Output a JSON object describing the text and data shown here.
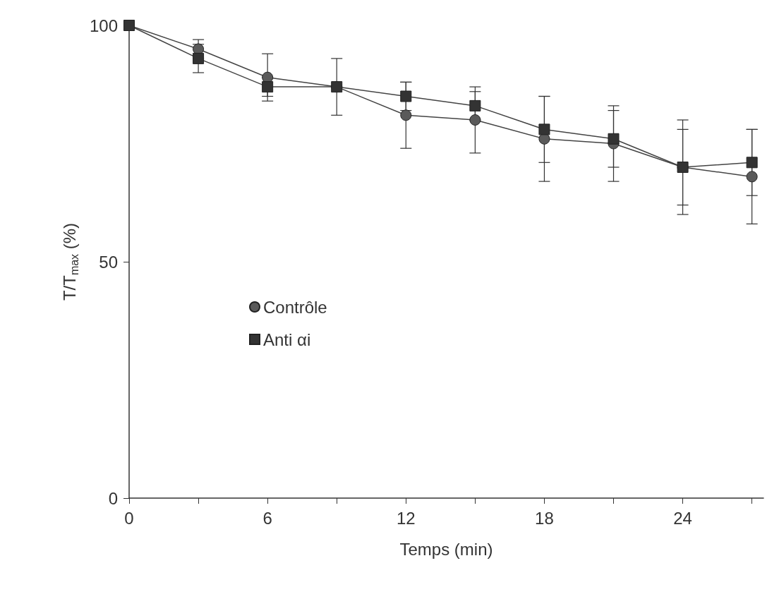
{
  "chart_data": {
    "type": "line",
    "xlabel": "Temps (min)",
    "ylabel": "T/T$_{max}$ (%)",
    "x": [
      0,
      3,
      6,
      9,
      12,
      15,
      18,
      21,
      24,
      27
    ],
    "xlim": [
      0,
      27.5
    ],
    "xticks": [
      0,
      {
        "value": 3,
        "label": null
      },
      6,
      {
        "value": 9,
        "label": null
      },
      12,
      {
        "value": 15,
        "label": null
      },
      18,
      {
        "value": 21,
        "label": null
      },
      24,
      {
        "value": 27,
        "label": null
      }
    ],
    "ylim": [
      0,
      100
    ],
    "yticks": [
      0,
      50,
      100
    ],
    "grid": false,
    "legend": "left",
    "line_style": "solid",
    "series": [
      {
        "name": "Contrôle",
        "color": "#5a5a5a",
        "marker": "circle",
        "values": [
          100,
          95,
          89,
          87,
          81,
          80,
          76,
          75,
          70,
          68
        ],
        "errors": [
          null,
          2,
          5,
          6,
          7,
          7,
          9,
          8,
          10,
          10
        ]
      },
      {
        "name": "Anti αi",
        "color": "#333333",
        "marker": "square",
        "values": [
          100,
          93,
          87,
          87,
          85,
          83,
          78,
          76,
          70,
          71
        ],
        "errors": [
          null,
          3,
          2,
          null,
          3,
          3,
          7,
          6,
          8,
          7
        ]
      }
    ]
  }
}
